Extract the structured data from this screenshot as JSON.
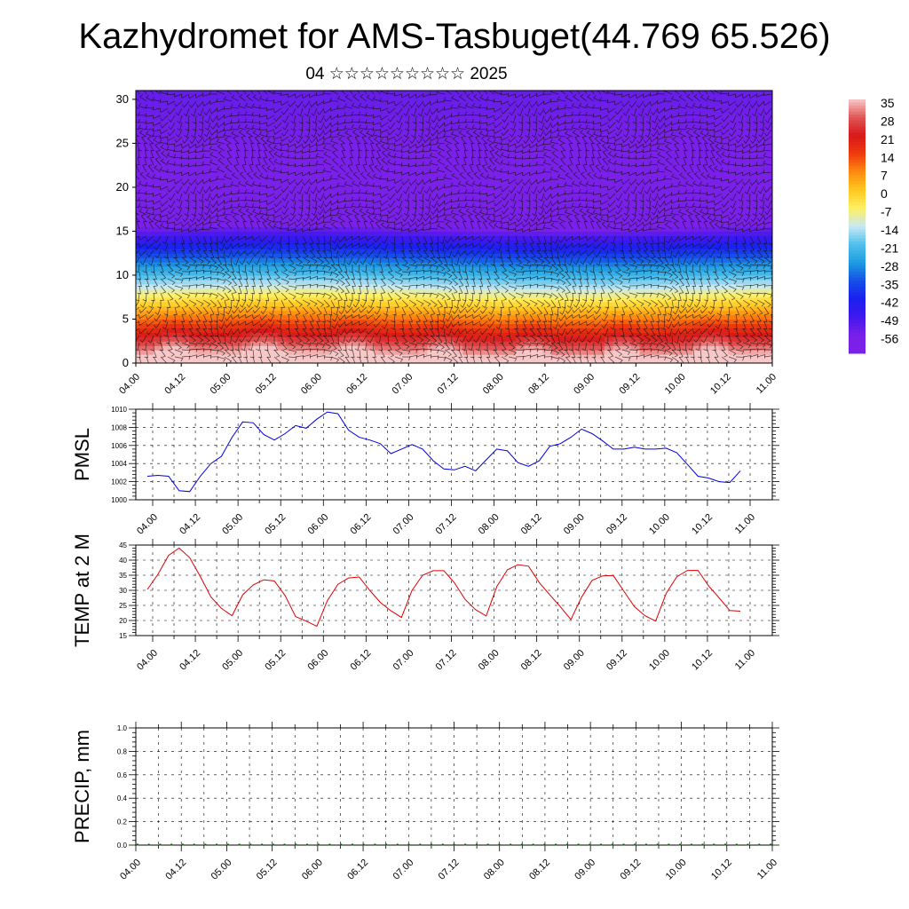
{
  "title": "Kazhydromet for AMS-Tasbuget(44.769 65.526)",
  "subtitle": "04 ☆☆☆☆☆☆☆☆☆ 2025",
  "time_labels": [
    "04.00",
    "04.12",
    "05.00",
    "05.12",
    "06.00",
    "06.12",
    "07.00",
    "07.12",
    "08.00",
    "08.12",
    "09.00",
    "09.12",
    "10.00",
    "10.12",
    "11.00"
  ],
  "chart_data": [
    {
      "type": "heatmap",
      "id": "temperature-cross-section",
      "x_labels": [
        "04.00",
        "04.12",
        "05.00",
        "05.12",
        "06.00",
        "06.12",
        "07.00",
        "07.12",
        "08.00",
        "08.12",
        "09.00",
        "09.12",
        "10.00",
        "10.12",
        "11.00"
      ],
      "y_ticks": [
        0,
        5,
        10,
        15,
        20,
        25,
        30
      ],
      "ylim": [
        0,
        31
      ],
      "colorbar": {
        "labels": [
          "35",
          "28",
          "21",
          "14",
          "7",
          "0",
          "-7",
          "-14",
          "-21",
          "-28",
          "-35",
          "-42",
          "-49",
          "-56"
        ],
        "stops": [
          {
            "v": 35,
            "c": "#f8c8c8"
          },
          {
            "v": 28,
            "c": "#e05555"
          },
          {
            "v": 21,
            "c": "#d81818"
          },
          {
            "v": 14,
            "c": "#ee3a0e"
          },
          {
            "v": 7,
            "c": "#ff8a10"
          },
          {
            "v": 0,
            "c": "#ffc820"
          },
          {
            "v": -7,
            "c": "#fff060"
          },
          {
            "v": -14,
            "c": "#c8e8f4"
          },
          {
            "v": -21,
            "c": "#50c0ec"
          },
          {
            "v": -28,
            "c": "#1e9ce0"
          },
          {
            "v": -35,
            "c": "#1650e8"
          },
          {
            "v": -42,
            "c": "#1a20f0"
          },
          {
            "v": -49,
            "c": "#4018ee"
          },
          {
            "v": -56,
            "c": "#7a20e8"
          }
        ]
      },
      "overlay": "wind barbs"
    },
    {
      "type": "line",
      "id": "pmsl",
      "ylabel": "PMSL",
      "ylim": [
        1000,
        1010
      ],
      "y_ticks": [
        1000,
        1002,
        1004,
        1006,
        1008,
        1010
      ],
      "x_labels": [
        "04.00",
        "04.12",
        "05.00",
        "05.12",
        "06.00",
        "06.12",
        "07.00",
        "07.12",
        "08.00",
        "08.12",
        "09.00",
        "09.12",
        "10.00",
        "10.12",
        "11.00"
      ],
      "color": "#0000dd",
      "values": [
        1002.6,
        1002.7,
        1002.6,
        1001.0,
        1000.9,
        1002.6,
        1004.0,
        1004.8,
        1006.9,
        1008.6,
        1008.5,
        1007.2,
        1006.6,
        1007.3,
        1008.2,
        1007.9,
        1008.9,
        1009.7,
        1009.5,
        1007.7,
        1006.9,
        1006.6,
        1006.2,
        1005.1,
        1005.6,
        1006.1,
        1005.6,
        1004.3,
        1003.4,
        1003.3,
        1003.7,
        1003.2,
        1004.4,
        1005.6,
        1005.4,
        1004.1,
        1003.7,
        1004.3,
        1005.9,
        1006.2,
        1006.9,
        1007.8,
        1007.3,
        1006.5,
        1005.6,
        1005.6,
        1005.8,
        1005.6,
        1005.6,
        1005.7,
        1005.2,
        1003.9,
        1002.6,
        1002.4,
        1002.0,
        1001.9,
        1003.2
      ]
    },
    {
      "type": "line",
      "id": "temp2m",
      "ylabel": "TEMP at 2 M",
      "ylim": [
        15,
        45
      ],
      "y_ticks": [
        15,
        20,
        25,
        30,
        35,
        40,
        45
      ],
      "x_labels": [
        "04.00",
        "04.12",
        "05.00",
        "05.12",
        "06.00",
        "06.12",
        "07.00",
        "07.12",
        "08.00",
        "08.12",
        "09.00",
        "09.12",
        "10.00",
        "10.12",
        "11.00"
      ],
      "color": "#dd0000",
      "values": [
        30.3,
        35.3,
        41.6,
        44.0,
        40.8,
        34.6,
        27.8,
        24.0,
        21.6,
        28.5,
        31.8,
        33.5,
        33.1,
        28.3,
        21.3,
        19.8,
        18.1,
        26.6,
        32.0,
        34.1,
        34.4,
        30.0,
        26.0,
        23.2,
        21.0,
        30.0,
        35.0,
        36.5,
        36.5,
        32.5,
        27.0,
        23.6,
        21.5,
        31.2,
        36.8,
        38.5,
        38.0,
        32.6,
        28.5,
        24.6,
        20.3,
        27.7,
        33.3,
        34.8,
        34.9,
        29.7,
        24.6,
        21.6,
        19.8,
        29.0,
        34.5,
        36.6,
        36.6,
        31.5,
        27.5,
        23.3,
        23.1
      ]
    },
    {
      "type": "bar",
      "id": "precip",
      "ylabel": "PRECIP, mm",
      "ylim": [
        0,
        1
      ],
      "y_ticks": [
        "0.0",
        "0.2",
        "0.4",
        "0.6",
        "0.8",
        "1.0"
      ],
      "x_labels": [
        "04.00",
        "04.12",
        "05.00",
        "05.12",
        "06.00",
        "06.12",
        "07.00",
        "07.12",
        "08.00",
        "08.12",
        "09.00",
        "09.12",
        "10.00",
        "10.12",
        "11.00"
      ],
      "color": "#006400",
      "values": [
        0,
        0,
        0,
        0,
        0,
        0,
        0,
        0,
        0,
        0,
        0,
        0,
        0,
        0,
        0,
        0,
        0,
        0,
        0,
        0,
        0,
        0,
        0,
        0,
        0,
        0,
        0,
        0,
        0,
        0,
        0,
        0,
        0,
        0,
        0,
        0,
        0,
        0,
        0,
        0,
        0,
        0,
        0,
        0,
        0,
        0,
        0,
        0,
        0,
        0,
        0,
        0,
        0,
        0,
        0,
        0,
        0
      ]
    }
  ]
}
